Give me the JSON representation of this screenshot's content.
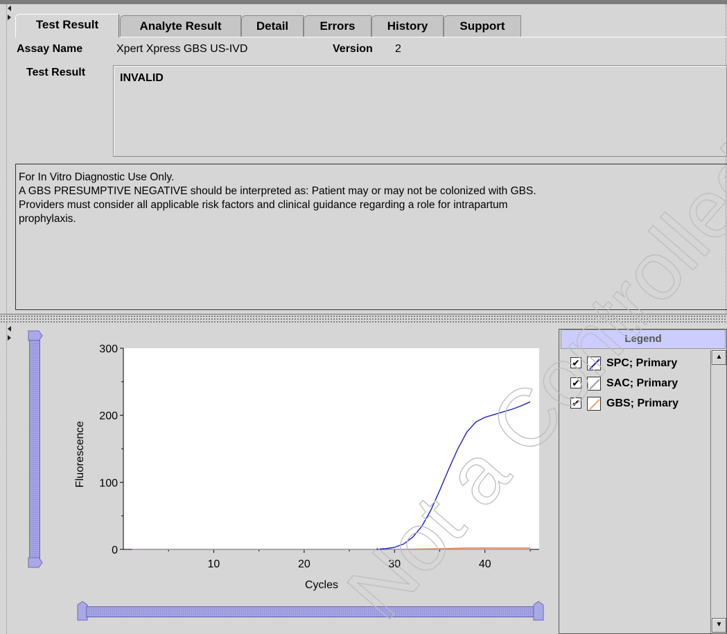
{
  "tabs": [
    "Test Result",
    "Analyte Result",
    "Detail",
    "Errors",
    "History",
    "Support"
  ],
  "assay": {
    "label": "Assay Name",
    "value": "Xpert Xpress GBS US-IVD",
    "version_label": "Version",
    "version_value": "2"
  },
  "test_result": {
    "label": "Test Result",
    "value": "INVALID"
  },
  "notes": [
    "For In Vitro Diagnostic Use Only.",
    "A GBS PRESUMPTIVE NEGATIVE should be interpreted as: Patient may or may not be colonized with GBS.",
    "Providers must consider all applicable risk factors and clinical guidance regarding a role for intrapartum",
    "prophylaxis."
  ],
  "legend": {
    "title": "Legend",
    "items": [
      {
        "label": "SPC; Primary",
        "color": "#2222bb",
        "checked": true
      },
      {
        "label": "SAC; Primary",
        "color": "#9a9ab8",
        "checked": true
      },
      {
        "label": "GBS; Primary",
        "color": "#f0a070",
        "checked": true
      }
    ]
  },
  "watermark": "Not a Controlled Copy",
  "chart_data": {
    "type": "line",
    "xlabel": "Cycles",
    "ylabel": "Fluorescence",
    "xlim": [
      0,
      46
    ],
    "ylim": [
      0,
      300
    ],
    "xticks": [
      10,
      20,
      30,
      40
    ],
    "yticks": [
      0,
      100,
      200,
      300
    ],
    "series": [
      {
        "name": "SPC; Primary",
        "color": "#1c1cc0",
        "x": [
          28,
          29,
          30,
          31,
          32,
          33,
          34,
          35,
          36,
          37,
          38,
          39,
          40,
          41,
          42,
          43,
          44,
          45
        ],
        "y": [
          0,
          1,
          3,
          8,
          18,
          34,
          58,
          88,
          120,
          150,
          175,
          190,
          197,
          201,
          205,
          209,
          214,
          220
        ]
      },
      {
        "name": "SAC; Primary",
        "color": "#9a9ab8",
        "x": [
          1,
          10,
          20,
          30,
          40,
          45
        ],
        "y": [
          0,
          0,
          0,
          0,
          0,
          0
        ]
      },
      {
        "name": "GBS; Primary",
        "color": "#f08040",
        "x": [
          1,
          10,
          20,
          30,
          35,
          38,
          40,
          45
        ],
        "y": [
          0,
          0,
          0,
          0,
          1,
          2,
          2,
          2
        ]
      }
    ]
  }
}
